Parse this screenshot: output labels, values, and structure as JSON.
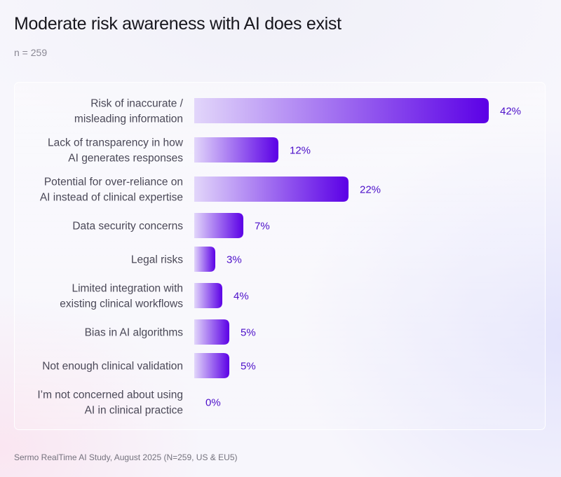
{
  "header": {
    "title": "Moderate risk awareness with AI does exist",
    "subtitle": "n = 259"
  },
  "footer": {
    "source": "Sermo RealTime AI Study, August 2025 (N=259, US & EU5)"
  },
  "colors": {
    "bar_start": "#e2d6fa",
    "bar_end": "#5b00e6",
    "value_label": "#4c0fc9",
    "category_label": "#4a4857"
  },
  "chart_data": {
    "type": "bar",
    "orientation": "horizontal",
    "title": "Moderate risk awareness with AI does exist",
    "subtitle": "n = 259",
    "xlabel": "",
    "ylabel": "",
    "xlim": [
      0,
      42
    ],
    "grid": false,
    "legend": "none",
    "value_suffix": "%",
    "categories": [
      [
        "Risk of inaccurate /",
        "misleading information"
      ],
      [
        "Lack of transparency in how",
        "AI generates responses"
      ],
      [
        "Potential for over-reliance on",
        "AI instead of clinical expertise"
      ],
      [
        "Data security concerns"
      ],
      [
        "Legal risks"
      ],
      [
        "Limited integration with",
        "existing clinical workflows"
      ],
      [
        "Bias in AI algorithms"
      ],
      [
        "Not enough clinical validation"
      ],
      [
        "I’m not concerned about using",
        "AI in clinical practice"
      ]
    ],
    "values": [
      42,
      12,
      22,
      7,
      3,
      4,
      5,
      5,
      0
    ],
    "value_labels": [
      "42%",
      "12%",
      "22%",
      "7%",
      "3%",
      "4%",
      "5%",
      "5%",
      "0%"
    ],
    "source": "Sermo RealTime AI Study, August 2025 (N=259, US & EU5)"
  }
}
